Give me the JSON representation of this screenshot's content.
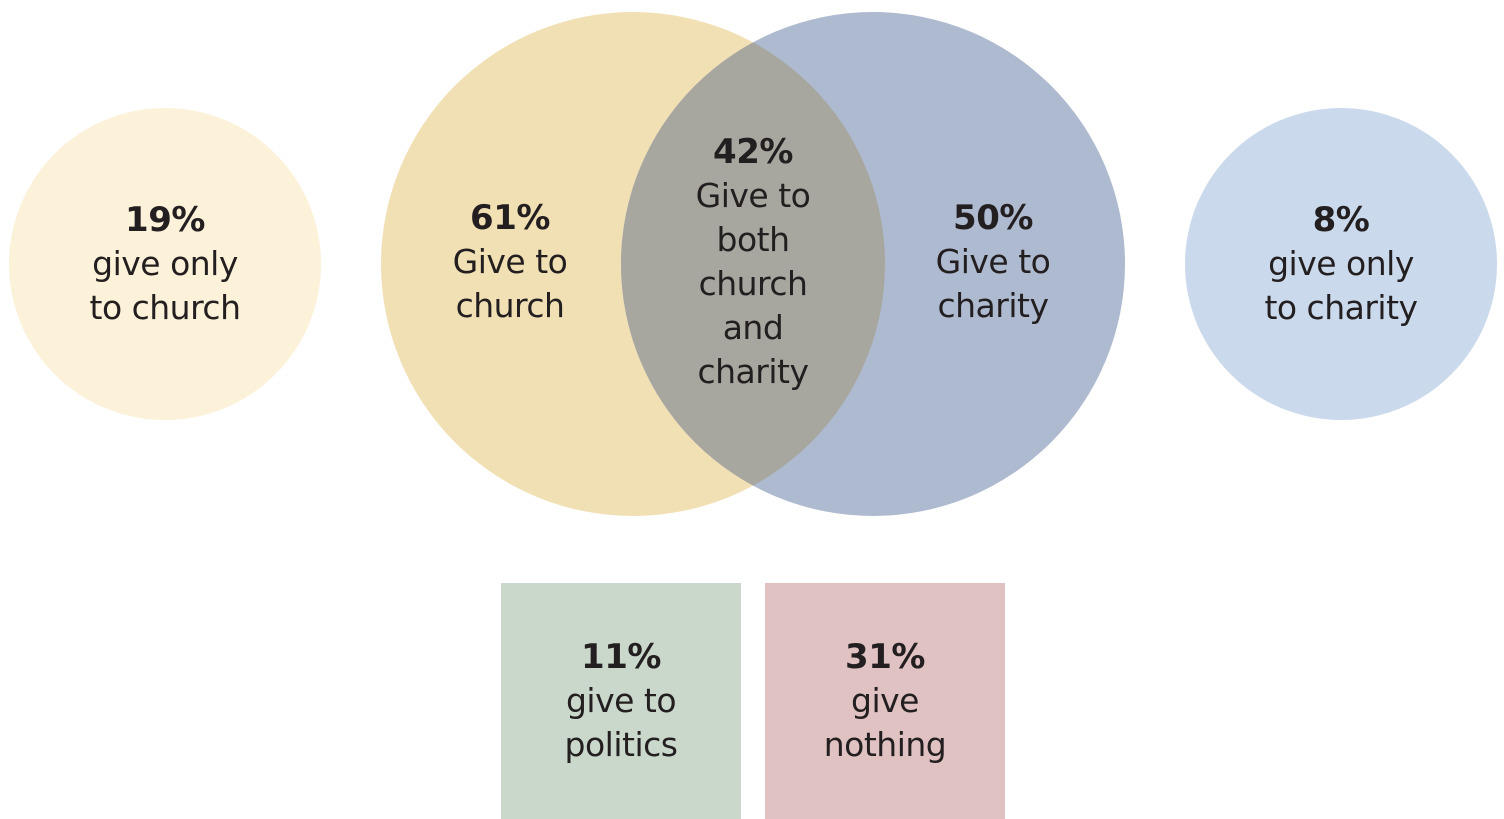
{
  "colors": {
    "church_only": "#fcf2d9",
    "church": "#f2e0b5",
    "charity": "#aebad0",
    "overlap": "#a7a79f",
    "charity_only": "#cad9ec",
    "politics": "#cad7cb",
    "nothing": "#dfc2c1"
  },
  "church_only": {
    "pct": "19%",
    "text": "give only\nto church"
  },
  "church": {
    "pct": "61%",
    "text": "Give to\nchurch"
  },
  "both": {
    "pct": "42%",
    "text": "Give to\nboth\nchurch\nand\ncharity"
  },
  "charity": {
    "pct": "50%",
    "text": "Give to\ncharity"
  },
  "charity_only": {
    "pct": "8%",
    "text": "give only\nto charity"
  },
  "politics": {
    "pct": "11%",
    "text": "give to\npolitics"
  },
  "nothing": {
    "pct": "31%",
    "text": "give\nnothing"
  }
}
